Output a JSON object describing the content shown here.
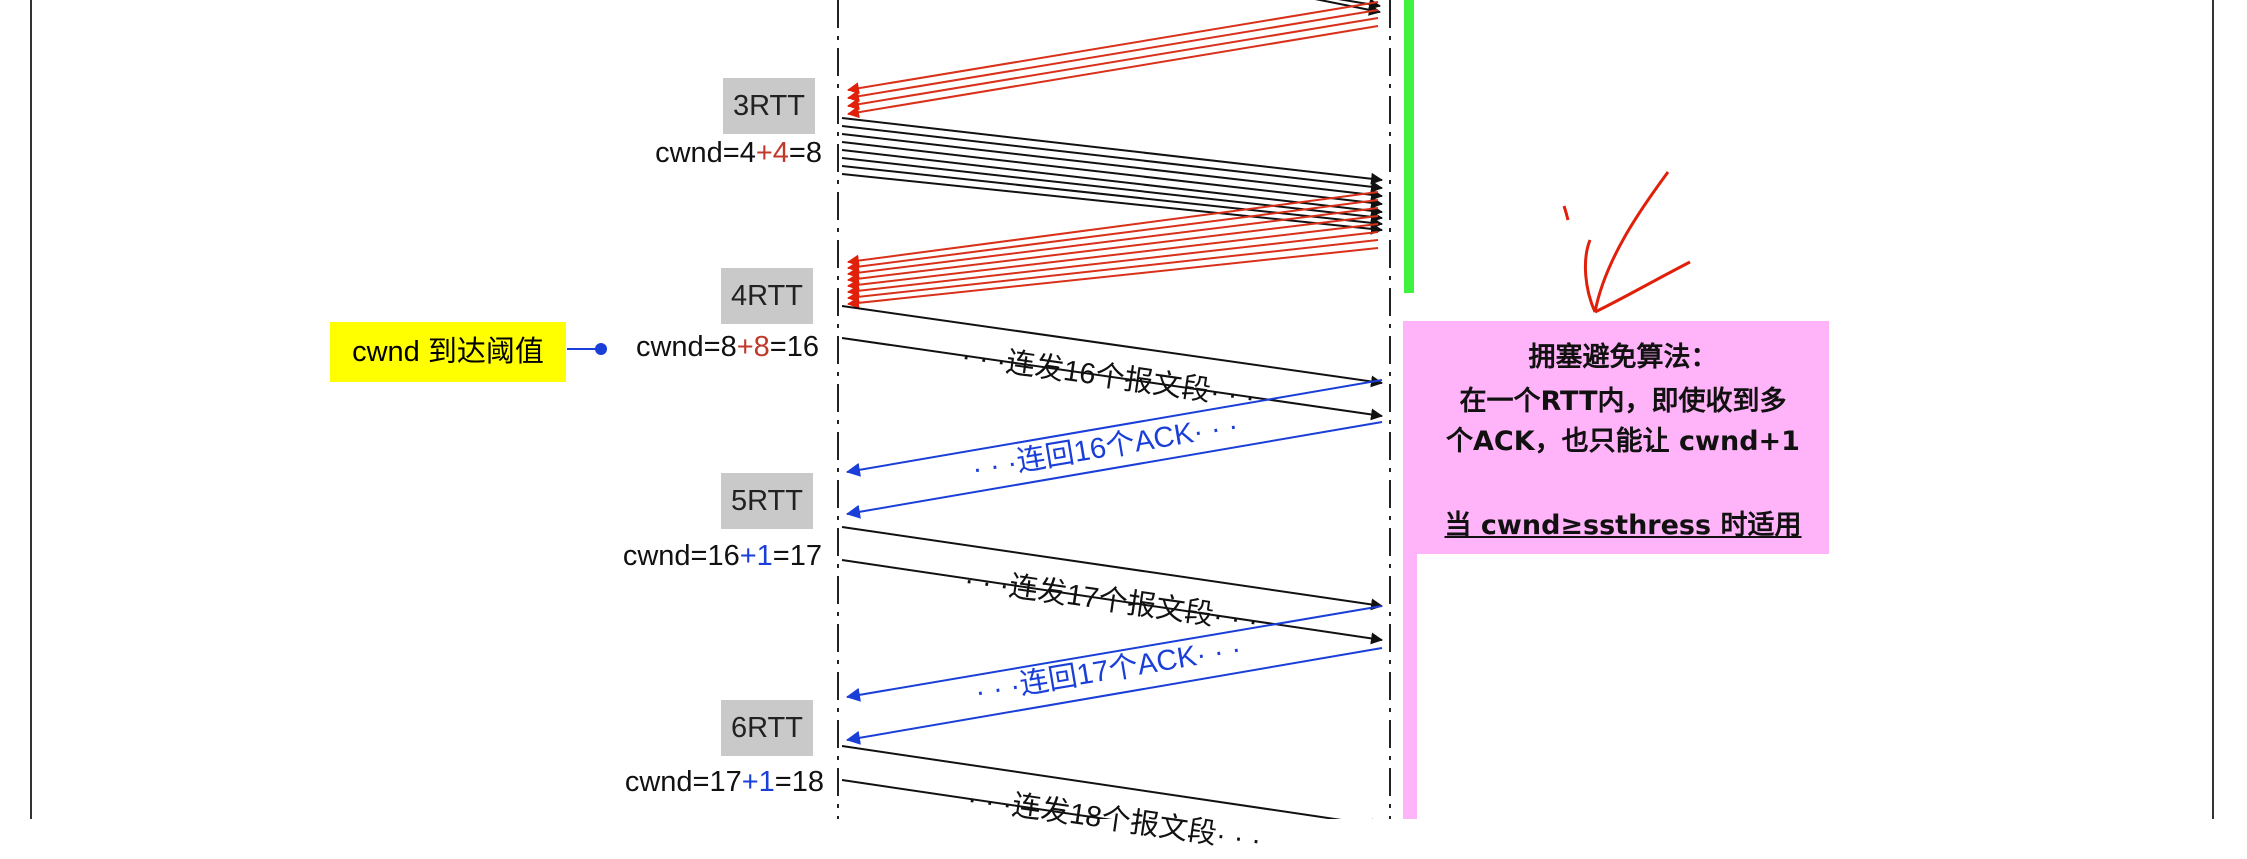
{
  "rtt_labels": [
    "3RTT",
    "4RTT",
    "5RTT",
    "6RTT"
  ],
  "cwnd_lines": [
    {
      "prefix": "cwnd=4",
      "inc": "+4",
      "suffix": "=8",
      "inc_color": "red"
    },
    {
      "prefix": "cwnd=8",
      "inc": "+8",
      "suffix": "=16",
      "inc_color": "red"
    },
    {
      "prefix": "cwnd=16",
      "inc": "+1",
      "suffix": "=17",
      "inc_color": "blue"
    },
    {
      "prefix": "cwnd=17",
      "inc": "+1",
      "suffix": "=18",
      "inc_color": "blue"
    }
  ],
  "threshold_note": "cwnd 到达阈值",
  "segment_labels": {
    "send16": "· · ·连发16个报文段· · ·",
    "ack16": "· · ·连回16个ACK· · ·",
    "send17": "· · ·连发17个报文段· · ·",
    "ack17": "· · ·连回17个ACK· · ·",
    "send18": "· · ·连发18个报文段· · ·"
  },
  "algorithm_panel": {
    "title": "拥塞避免算法：",
    "line1": "在一个RTT内，即使收到多",
    "line2": "个ACK，也只能让 cwnd+1",
    "line3": "当 cwnd≥ssthress 时适用"
  },
  "colors": {
    "rtt_box": "#c9c9c9",
    "red_arrow": "#d9301a",
    "blue_arrow": "#1a3fd8",
    "note_bg": "#ffff00",
    "panel_bg": "#ffb3f8",
    "green_bar": "#3ef23e"
  }
}
